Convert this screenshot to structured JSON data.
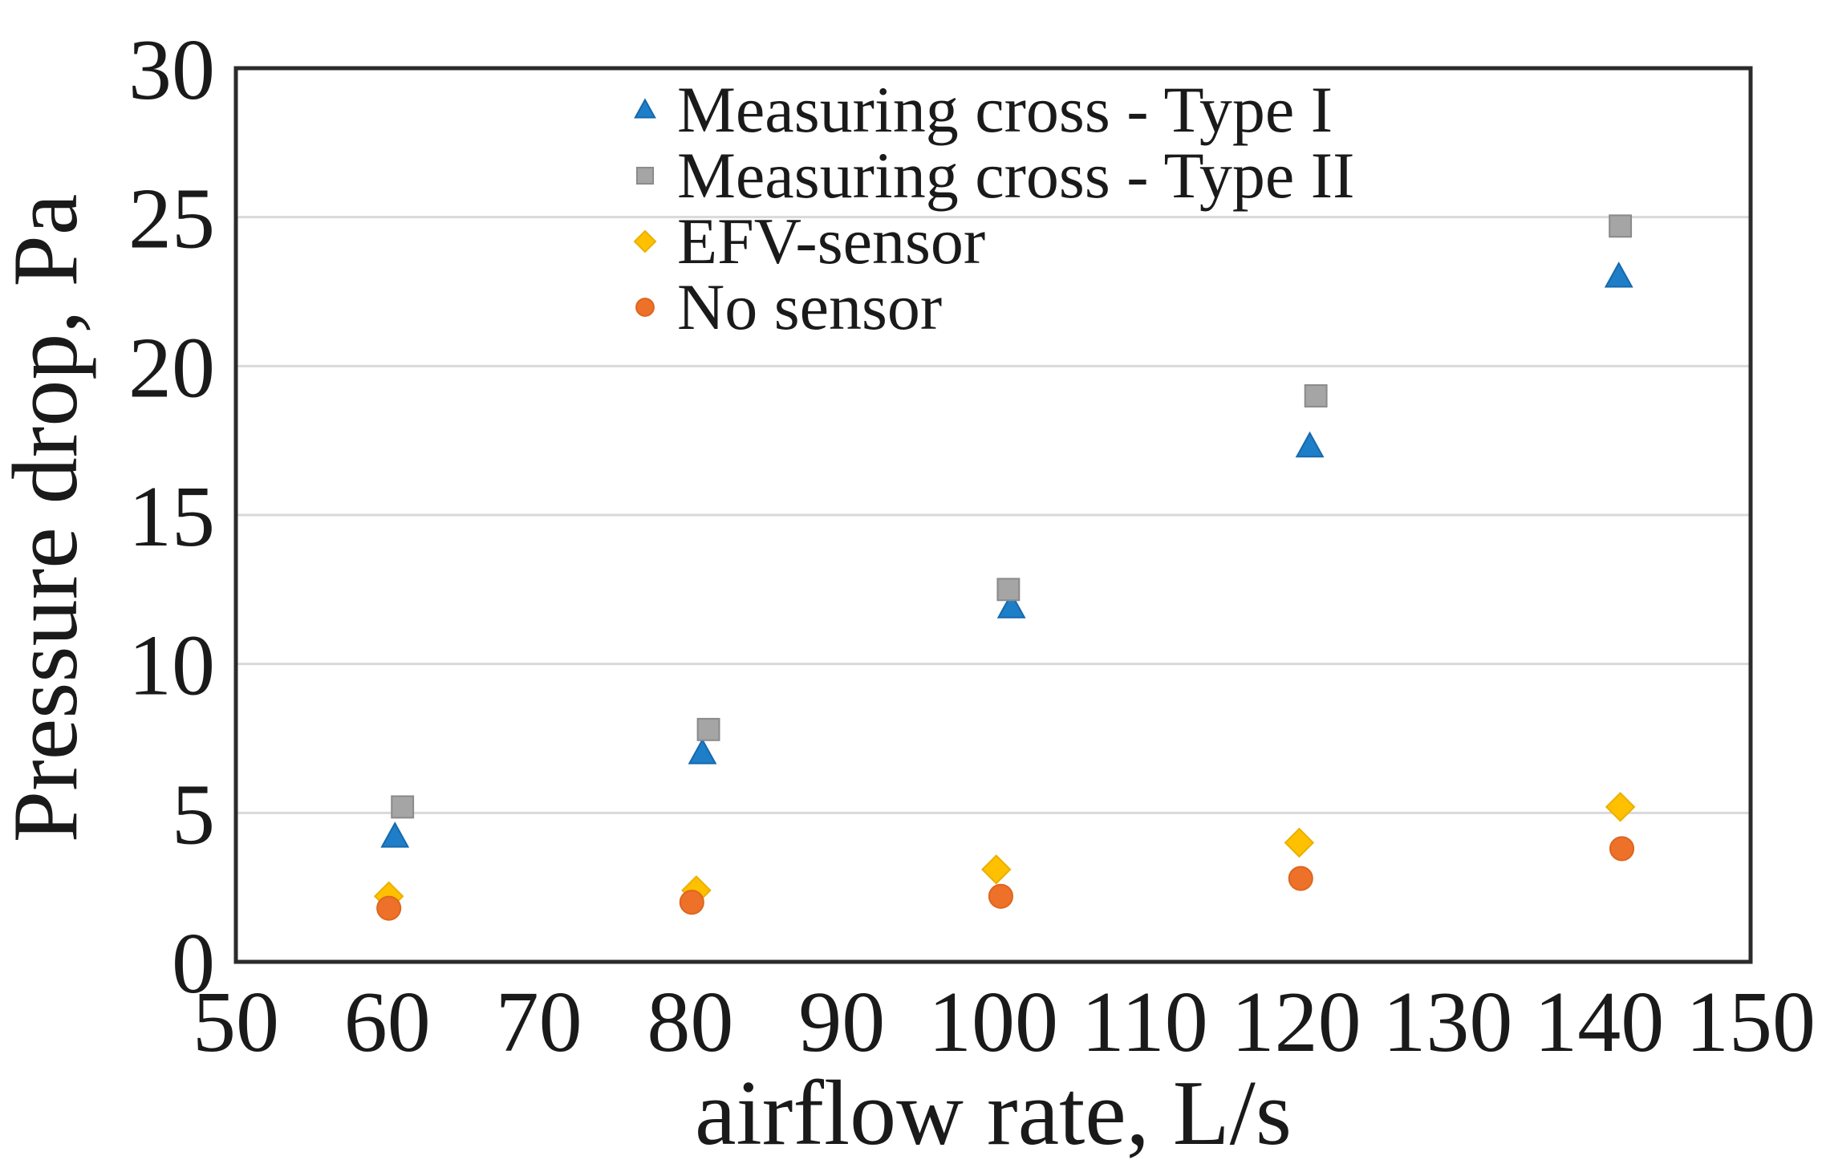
{
  "figure": {
    "background": "#ffffff",
    "text_color": "#1a1a1a"
  },
  "chart_data": {
    "type": "scatter",
    "title": "",
    "xlabel": "airflow rate, L/s",
    "ylabel": "Pressure drop, Pa",
    "xlim": [
      50,
      150
    ],
    "ylim": [
      0,
      30
    ],
    "x_ticks": [
      50,
      60,
      70,
      80,
      90,
      100,
      110,
      120,
      130,
      140,
      150
    ],
    "y_ticks": [
      0,
      5,
      10,
      15,
      20,
      25,
      30
    ],
    "grid": "horizontal-only",
    "gridline_color": "#d9d9d9",
    "axis_border_color": "#2b2b2b",
    "legend_position": "inside-top-center",
    "series": [
      {
        "name": "Measuring cross - Type I",
        "marker": "triangle",
        "color": "#1e7ec8",
        "edge_color": "#1669ad",
        "x": [
          60.5,
          80.8,
          101.2,
          120.9,
          141.3
        ],
        "y": [
          4.2,
          7.0,
          11.9,
          17.3,
          23.0
        ]
      },
      {
        "name": "Measuring cross - Type II",
        "marker": "square",
        "color": "#a5a5a5",
        "edge_color": "#8a8a8a",
        "x": [
          61.0,
          81.2,
          101.0,
          121.3,
          141.4
        ],
        "y": [
          5.2,
          7.8,
          12.5,
          19.0,
          24.7
        ]
      },
      {
        "name": "EFV-sensor",
        "marker": "diamond",
        "color": "#ffc000",
        "edge_color": "#eab000",
        "x": [
          60.1,
          80.4,
          100.2,
          120.2,
          141.4
        ],
        "y": [
          2.2,
          2.4,
          3.1,
          4.0,
          5.2
        ]
      },
      {
        "name": "No sensor",
        "marker": "circle",
        "color": "#ed7128",
        "edge_color": "#dd6620",
        "x": [
          60.1,
          80.1,
          100.5,
          120.3,
          141.5
        ],
        "y": [
          1.8,
          2.0,
          2.2,
          2.8,
          3.8
        ]
      }
    ]
  }
}
